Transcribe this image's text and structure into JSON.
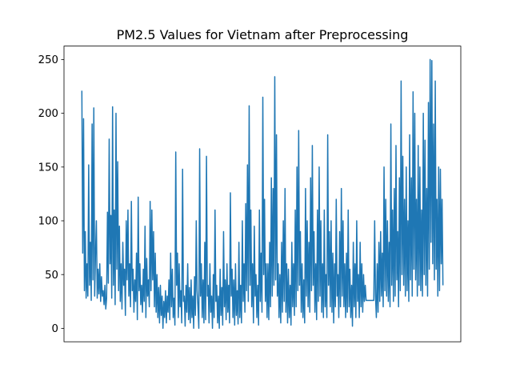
{
  "chart_data": {
    "type": "line",
    "title": "PM2.5 Values for Vietnam after Preprocessing",
    "xlabel": "",
    "ylabel": "",
    "x_ticks_shown": false,
    "ylim": [
      -12.5,
      262.5
    ],
    "y_ticks": [
      "0",
      "50",
      "100",
      "150",
      "200",
      "250"
    ],
    "grid": false,
    "legend": "none",
    "series": [
      {
        "color": "#1f77b4",
        "note_segments": "noisy series, flat imputed segment near 26 in the middle-right section",
        "values": [
          221,
          70,
          195,
          35,
          90,
          28,
          60,
          30,
          152,
          40,
          80,
          26,
          190,
          45,
          205,
          30,
          70,
          100,
          28,
          55,
          32,
          60,
          25,
          48,
          30,
          35,
          22,
          40,
          18,
          28,
          108,
          42,
          176,
          60,
          105,
          28,
          206,
          40,
          110,
          22,
          200,
          55,
          155,
          35,
          95,
          25,
          60,
          18,
          80,
          40,
          55,
          12,
          100,
          45,
          110,
          30,
          60,
          20,
          118,
          35,
          55,
          15,
          45,
          25,
          70,
          8,
          122,
          35,
          60,
          22,
          40,
          15,
          55,
          25,
          95,
          10,
          65,
          30,
          45,
          20,
          118,
          35,
          110,
          45,
          90,
          20,
          70,
          15,
          50,
          10,
          38,
          5,
          40,
          12,
          30,
          0,
          25,
          10,
          35,
          5,
          30,
          15,
          45,
          8,
          70,
          20,
          55,
          10,
          28,
          3,
          164,
          40,
          70,
          10,
          60,
          20,
          35,
          5,
          148,
          25,
          30,
          2,
          40,
          15,
          60,
          8,
          38,
          5,
          45,
          10,
          30,
          0,
          48,
          12,
          100,
          35,
          20,
          0,
          167,
          30,
          60,
          10,
          45,
          5,
          80,
          8,
          160,
          30,
          40,
          5,
          60,
          15,
          30,
          0,
          50,
          10,
          110,
          25,
          40,
          5,
          30,
          0,
          55,
          12,
          38,
          3,
          90,
          20,
          45,
          8,
          60,
          15,
          40,
          5,
          126,
          30,
          55,
          10,
          45,
          3,
          60,
          12,
          35,
          4,
          80,
          10,
          40,
          5,
          100,
          25,
          60,
          15,
          116,
          35,
          152,
          25,
          207,
          40,
          110,
          20,
          60,
          5,
          95,
          30,
          50,
          10,
          40,
          3,
          110,
          25,
          70,
          15,
          215,
          50,
          120,
          25,
          60,
          10,
          60,
          8,
          80,
          20,
          140,
          30,
          130,
          40,
          234,
          45,
          180,
          30,
          60,
          10,
          50,
          5,
          80,
          15,
          100,
          25,
          130,
          15,
          60,
          5,
          55,
          10,
          40,
          3,
          80,
          20,
          60,
          12,
          110,
          20,
          150,
          35,
          184,
          40,
          90,
          15,
          60,
          10,
          45,
          5,
          130,
          30,
          100,
          20,
          80,
          15,
          140,
          35,
          170,
          40,
          90,
          15,
          60,
          8,
          110,
          25,
          150,
          30,
          100,
          15,
          60,
          10,
          110,
          20,
          50,
          10,
          180,
          40,
          90,
          20,
          100,
          15,
          70,
          5,
          60,
          20,
          120,
          30,
          50,
          10,
          90,
          20,
          130,
          30,
          100,
          20,
          60,
          10,
          70,
          15,
          110,
          20,
          55,
          10,
          40,
          2,
          80,
          20,
          60,
          10,
          100,
          25,
          50,
          10,
          80,
          20,
          60,
          15,
          50,
          25,
          40,
          26,
          26,
          26,
          26,
          26,
          26,
          26,
          26,
          26,
          26,
          100,
          30,
          10,
          60,
          15,
          80,
          25,
          90,
          30,
          70,
          20,
          150,
          35,
          120,
          30,
          100,
          25,
          80,
          20,
          190,
          40,
          110,
          25,
          130,
          30,
          170,
          45,
          90,
          20,
          140,
          35,
          230,
          50,
          160,
          40,
          120,
          30,
          150,
          35,
          100,
          25,
          180,
          45,
          140,
          30,
          220,
          55,
          200,
          45,
          120,
          30,
          170,
          40,
          150,
          35,
          110,
          30,
          200,
          50,
          175,
          40,
          130,
          30,
          210,
          55,
          250,
          80,
          249,
          60,
          190,
          45,
          230,
          55,
          120,
          30,
          150,
          35,
          148,
          60,
          120,
          40
        ]
      }
    ]
  }
}
